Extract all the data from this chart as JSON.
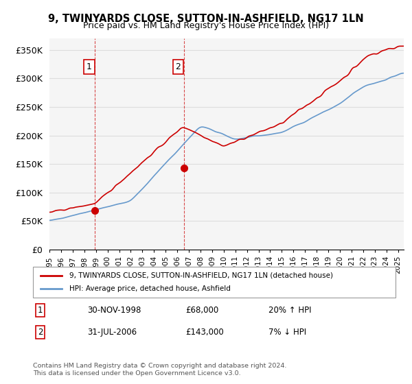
{
  "title_line1": "9, TWINYARDS CLOSE, SUTTON-IN-ASHFIELD, NG17 1LN",
  "title_line2": "Price paid vs. HM Land Registry's House Price Index (HPI)",
  "ylabel_ticks": [
    "£0",
    "£50K",
    "£100K",
    "£150K",
    "£200K",
    "£250K",
    "£300K",
    "£350K"
  ],
  "ytick_vals": [
    0,
    50000,
    100000,
    150000,
    200000,
    250000,
    300000,
    350000
  ],
  "ylim": [
    0,
    370000
  ],
  "xlim_start": 1995.0,
  "xlim_end": 2025.5,
  "sale1_date": 1998.92,
  "sale1_price": 68000,
  "sale1_label": "1",
  "sale2_date": 2006.58,
  "sale2_price": 143000,
  "sale2_label": "2",
  "vline1_x": 1998.92,
  "vline2_x": 2006.58,
  "legend_line1": "9, TWINYARDS CLOSE, SUTTON-IN-ASHFIELD, NG17 1LN (detached house)",
  "legend_line2": "HPI: Average price, detached house, Ashfield",
  "table_row1": [
    "1",
    "30-NOV-1998",
    "£68,000",
    "20% ↑ HPI"
  ],
  "table_row2": [
    "2",
    "31-JUL-2006",
    "£143,000",
    "7% ↓ HPI"
  ],
  "footnote": "Contains HM Land Registry data © Crown copyright and database right 2024.\nThis data is licensed under the Open Government Licence v3.0.",
  "red_color": "#cc0000",
  "blue_color": "#6699cc",
  "grid_color": "#dddddd",
  "bg_color": "#ffffff",
  "plot_bg": "#f5f5f5"
}
